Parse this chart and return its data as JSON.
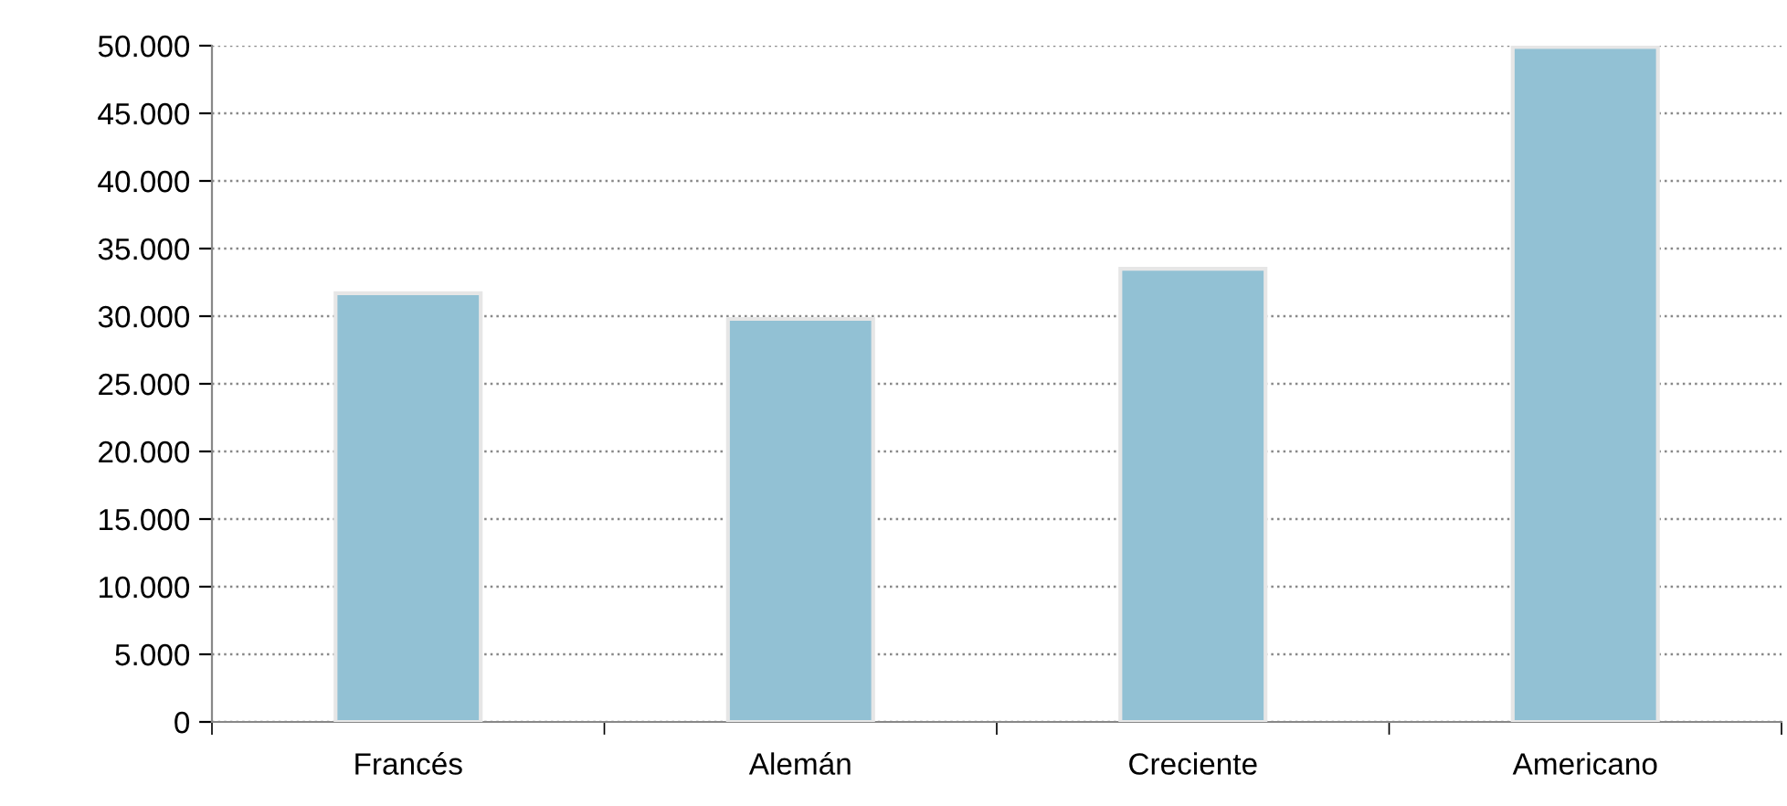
{
  "chart_data": {
    "type": "bar",
    "categories": [
      "Francés",
      "Alemán",
      "Creciente",
      "Americano"
    ],
    "values": [
      31700,
      29800,
      33500,
      49900
    ],
    "color": "#92c1d4",
    "ylim": [
      0,
      50000
    ],
    "yticks": [
      {
        "value": 0,
        "label": "0"
      },
      {
        "value": 5000,
        "label": "5.000"
      },
      {
        "value": 10000,
        "label": "10.000"
      },
      {
        "value": 15000,
        "label": "15.000"
      },
      {
        "value": 20000,
        "label": "20.000"
      },
      {
        "value": 25000,
        "label": "25.000"
      },
      {
        "value": 30000,
        "label": "30.000"
      },
      {
        "value": 35000,
        "label": "35.000"
      },
      {
        "value": 40000,
        "label": "40.000"
      },
      {
        "value": 45000,
        "label": "45.000"
      },
      {
        "value": 50000,
        "label": "50.000"
      }
    ],
    "grid": "y"
  }
}
